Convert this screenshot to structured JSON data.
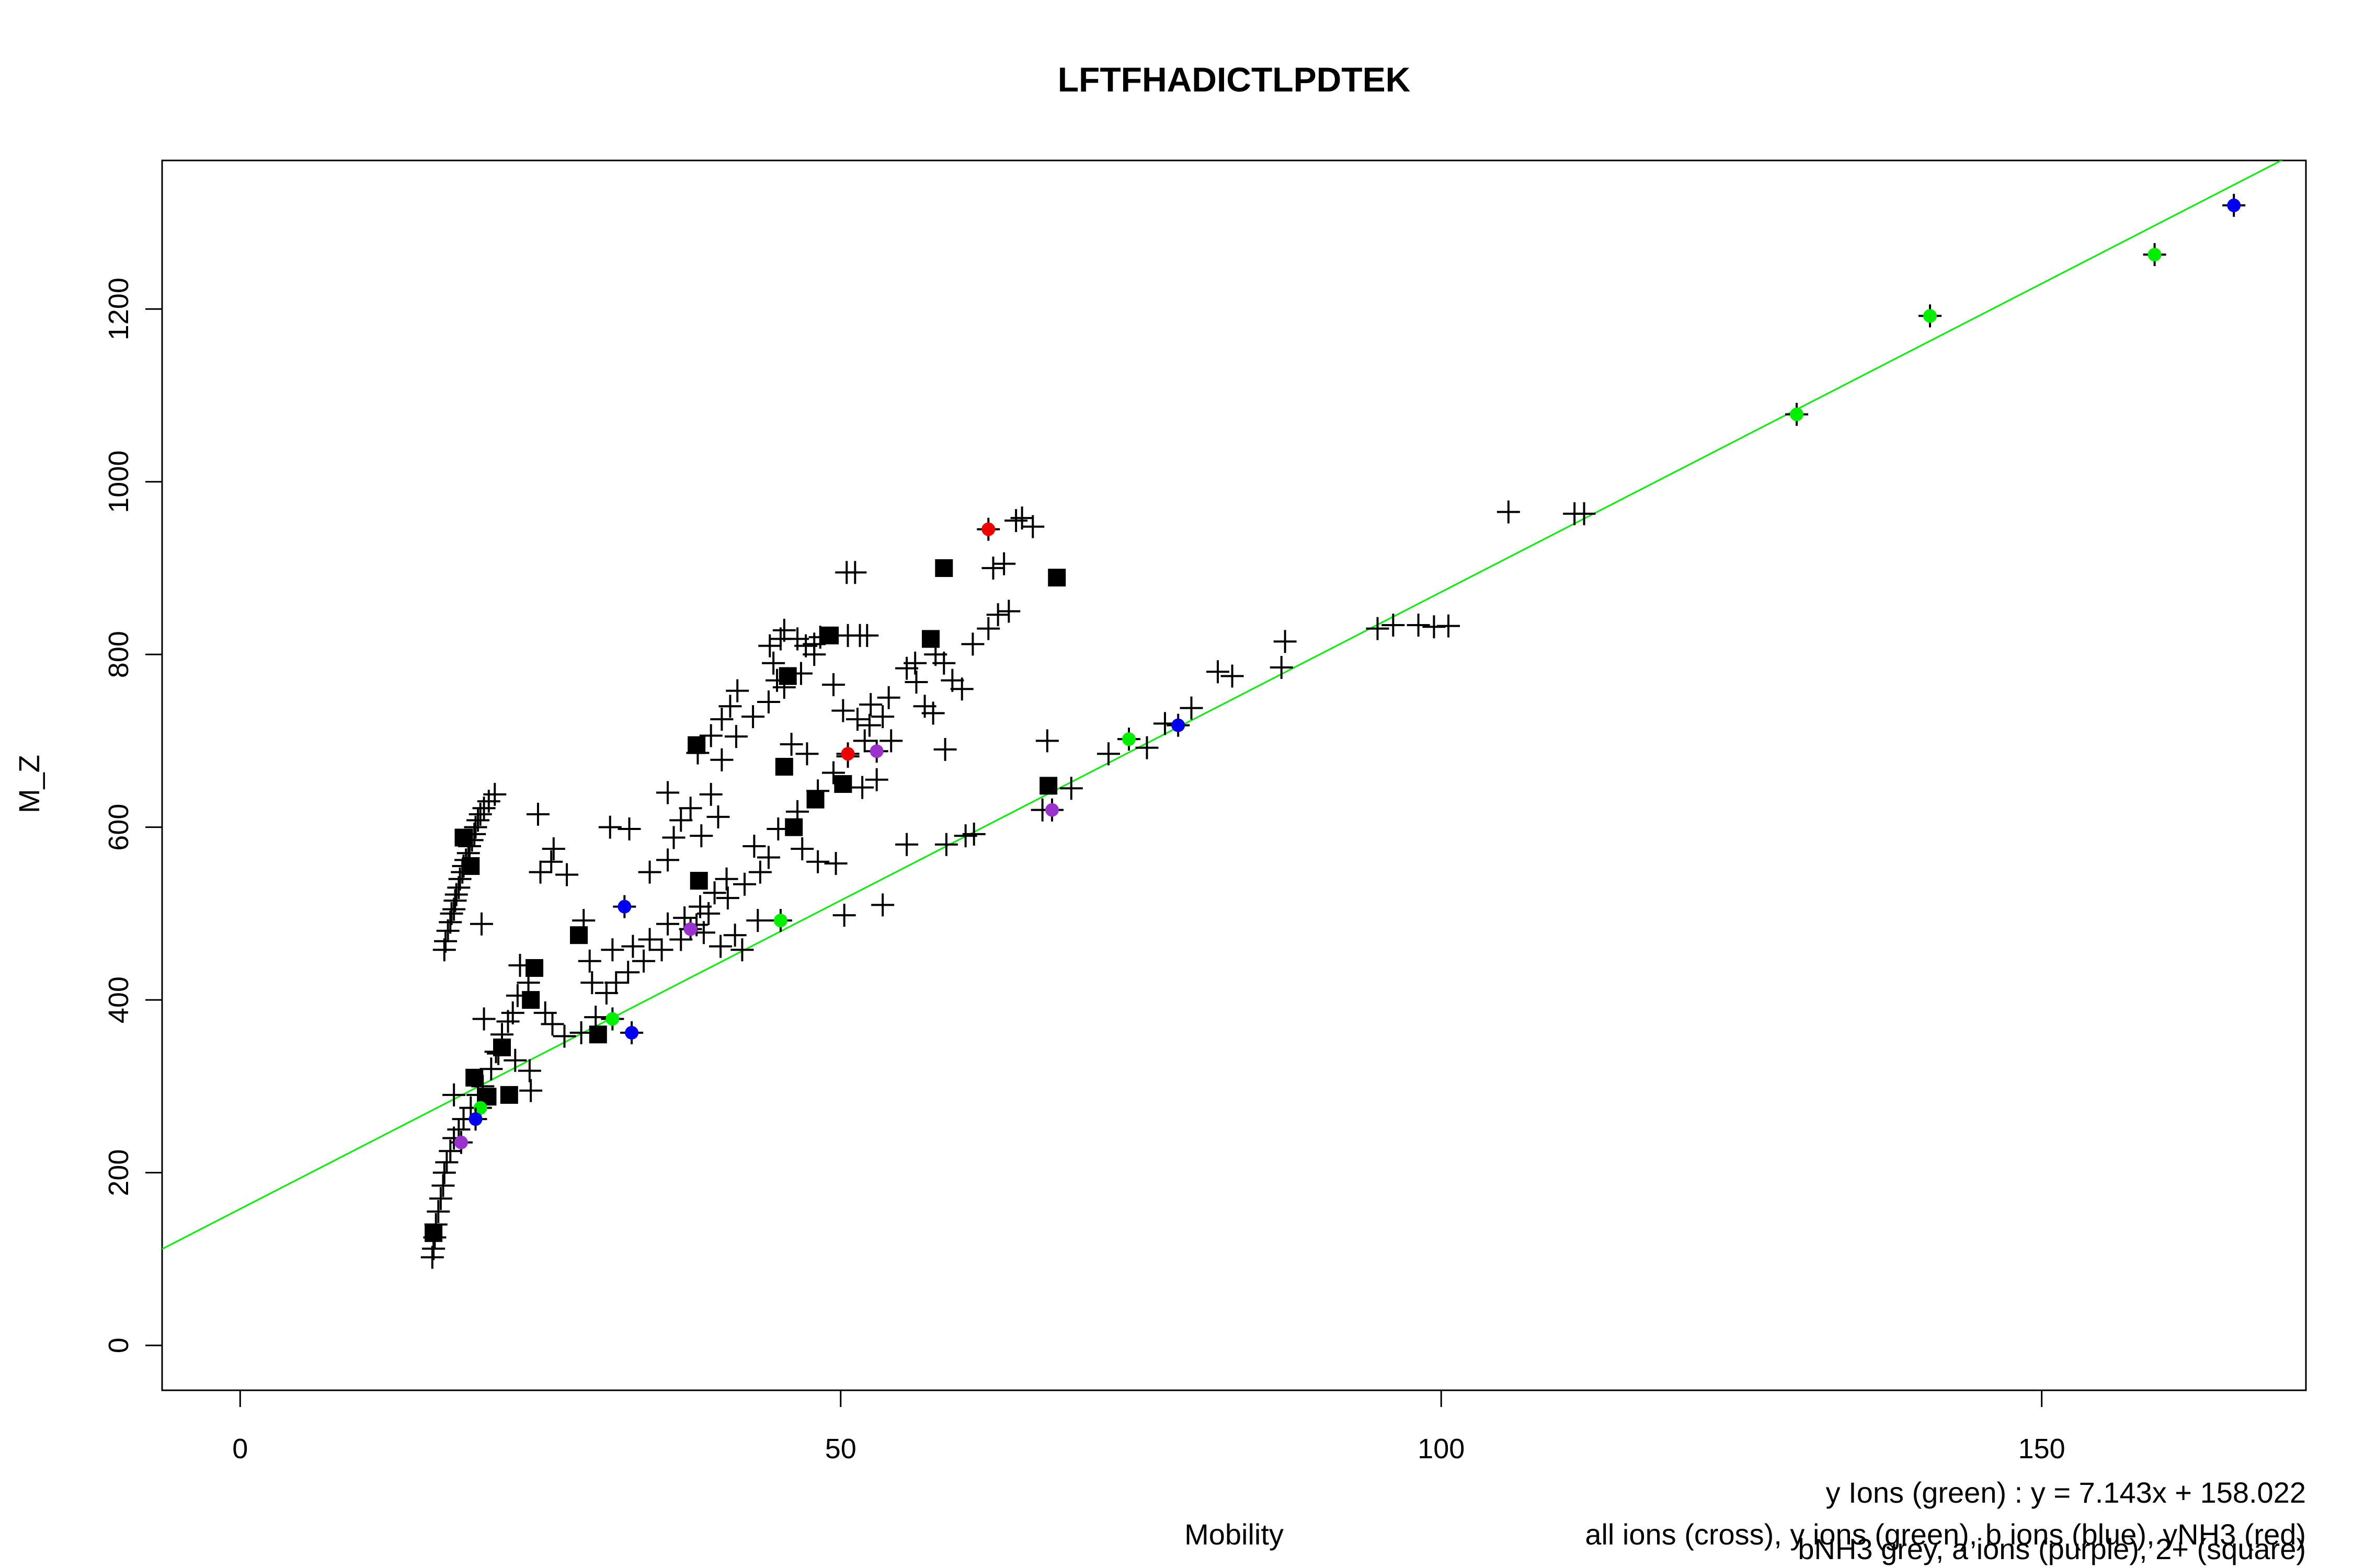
{
  "chart_data": {
    "type": "scatter",
    "title": "LFTFHADICTLPDTEK",
    "xlabel": "Mobility",
    "ylabel": "M_Z",
    "xlim": [
      -6.5,
      172
    ],
    "ylim": [
      -52,
      1372
    ],
    "x_ticks": [
      0,
      50,
      100,
      150
    ],
    "y_ticks": [
      0,
      200,
      400,
      600,
      800,
      1000,
      1200
    ],
    "grid": false,
    "legend": "bottom-right text notes",
    "notes": [
      "y Ions (green) : y = 7.143x + 158.022",
      "all ions (cross), y ions (green), b ions (blue), yNH3 (red)",
      "bNH3 grey, a ions (purple), 2+ (square)"
    ],
    "fit_line": {
      "slope": 7.143,
      "intercept": 158.022,
      "color": "#00ee00"
    },
    "colors": {
      "cross": "#000000",
      "square": "#000000",
      "y_ions": "#00ee00",
      "b_ions": "#0000ee",
      "yNH3": "#ee0000",
      "a_ions": "#9a32cd"
    },
    "series": [
      {
        "marker": "cross",
        "points": [
          [
            16.0,
            102
          ],
          [
            16.1,
            112
          ],
          [
            16.2,
            125
          ],
          [
            16.3,
            140
          ],
          [
            16.5,
            155
          ],
          [
            16.7,
            170
          ],
          [
            16.9,
            185
          ],
          [
            17.0,
            200
          ],
          [
            17.2,
            212
          ],
          [
            17.5,
            225
          ],
          [
            17.8,
            240
          ],
          [
            18.2,
            250
          ],
          [
            18.6,
            262
          ],
          [
            19.2,
            275
          ],
          [
            19.8,
            290
          ],
          [
            17.8,
            290
          ],
          [
            20.2,
            300
          ],
          [
            20.9,
            320
          ],
          [
            21.3,
            340
          ],
          [
            21.8,
            360
          ],
          [
            20.3,
            378
          ],
          [
            22.3,
            375
          ],
          [
            22.7,
            385
          ],
          [
            23.1,
            405
          ],
          [
            24.0,
            420
          ],
          [
            23.3,
            440
          ],
          [
            24.2,
            295
          ],
          [
            24.1,
            318
          ],
          [
            22.9,
            330
          ],
          [
            21.5,
            338
          ],
          [
            17.0,
            458
          ],
          [
            17.1,
            468
          ],
          [
            17.3,
            480
          ],
          [
            17.5,
            490
          ],
          [
            17.6,
            500
          ],
          [
            17.8,
            505
          ],
          [
            17.9,
            515
          ],
          [
            18.0,
            522
          ],
          [
            18.2,
            530
          ],
          [
            18.3,
            540
          ],
          [
            18.5,
            548
          ],
          [
            18.6,
            555
          ],
          [
            18.8,
            562
          ],
          [
            19.0,
            570
          ],
          [
            19.1,
            578
          ],
          [
            19.3,
            585
          ],
          [
            19.5,
            592
          ],
          [
            19.6,
            600
          ],
          [
            19.8,
            608
          ],
          [
            20.0,
            615
          ],
          [
            20.3,
            622
          ],
          [
            20.7,
            630
          ],
          [
            21.2,
            638
          ],
          [
            20.1,
            488
          ],
          [
            25.4,
            385
          ],
          [
            26.0,
            372
          ],
          [
            27.0,
            358
          ],
          [
            28.4,
            362
          ],
          [
            29.6,
            380
          ],
          [
            30.5,
            408
          ],
          [
            31.3,
            420
          ],
          [
            32.3,
            432
          ],
          [
            33.6,
            445
          ],
          [
            35.1,
            458
          ],
          [
            36.7,
            470
          ],
          [
            38.0,
            487
          ],
          [
            39.0,
            500
          ],
          [
            40.6,
            518
          ],
          [
            42.0,
            534
          ],
          [
            43.3,
            548
          ],
          [
            44.0,
            565
          ],
          [
            29.3,
            420
          ],
          [
            29.1,
            445
          ],
          [
            31.0,
            458
          ],
          [
            32.7,
            462
          ],
          [
            34.1,
            470
          ],
          [
            35.6,
            488
          ],
          [
            37.0,
            495
          ],
          [
            38.3,
            508
          ],
          [
            39.5,
            524
          ],
          [
            40.5,
            540
          ],
          [
            42.8,
            578
          ],
          [
            44.8,
            598
          ],
          [
            46.4,
            618
          ],
          [
            48.1,
            642
          ],
          [
            49.4,
            663
          ],
          [
            50.6,
            682
          ],
          [
            52.0,
            700
          ],
          [
            53.5,
            728
          ],
          [
            28.6,
            492
          ],
          [
            30.8,
            600
          ],
          [
            32.4,
            598
          ],
          [
            34.1,
            548
          ],
          [
            35.6,
            562
          ],
          [
            36.1,
            588
          ],
          [
            36.7,
            608
          ],
          [
            37.5,
            622
          ],
          [
            38.4,
            590
          ],
          [
            39.2,
            638
          ],
          [
            40.1,
            678
          ],
          [
            41.3,
            705
          ],
          [
            42.7,
            728
          ],
          [
            44.0,
            745
          ],
          [
            45.3,
            762
          ],
          [
            46.7,
            778
          ],
          [
            47.8,
            800
          ],
          [
            48.3,
            820
          ],
          [
            50.6,
            822
          ],
          [
            51.6,
            822
          ],
          [
            52.2,
            822
          ],
          [
            25.0,
            548
          ],
          [
            25.9,
            560
          ],
          [
            26.1,
            575
          ],
          [
            24.8,
            615
          ],
          [
            27.2,
            545
          ],
          [
            35.6,
            640
          ],
          [
            39.8,
            612
          ],
          [
            38.1,
            686
          ],
          [
            39.2,
            706
          ],
          [
            40.1,
            725
          ],
          [
            40.8,
            740
          ],
          [
            41.4,
            758
          ],
          [
            44.1,
            810
          ],
          [
            44.4,
            790
          ],
          [
            44.7,
            770
          ],
          [
            45.0,
            818
          ],
          [
            45.3,
            828
          ],
          [
            46.4,
            818
          ],
          [
            47.1,
            810
          ],
          [
            47.8,
            812
          ],
          [
            49.4,
            765
          ],
          [
            50.2,
            735
          ],
          [
            51.4,
            725
          ],
          [
            52.4,
            718
          ],
          [
            54.2,
            700
          ],
          [
            55.5,
            784
          ],
          [
            56.2,
            790
          ],
          [
            57.0,
            740
          ],
          [
            57.7,
            732
          ],
          [
            58.7,
            690
          ],
          [
            46.8,
            575
          ],
          [
            48.1,
            560
          ],
          [
            49.6,
            558
          ],
          [
            50.3,
            498
          ],
          [
            43.1,
            492
          ],
          [
            41.2,
            475
          ],
          [
            41.8,
            458
          ],
          [
            40.0,
            462
          ],
          [
            38.6,
            478
          ],
          [
            57.9,
            800
          ],
          [
            58.6,
            790
          ],
          [
            59.3,
            770
          ],
          [
            60.1,
            760
          ],
          [
            61.0,
            812
          ],
          [
            62.3,
            830
          ],
          [
            63.1,
            846
          ],
          [
            64.0,
            850
          ],
          [
            62.7,
            900
          ],
          [
            63.6,
            905
          ],
          [
            64.6,
            955
          ],
          [
            65.1,
            958
          ],
          [
            66.0,
            948
          ],
          [
            67.2,
            700
          ],
          [
            66.8,
            620
          ],
          [
            69.2,
            645
          ],
          [
            72.3,
            685
          ],
          [
            75.5,
            692
          ],
          [
            77.0,
            720
          ],
          [
            79.2,
            738
          ],
          [
            81.4,
            780
          ],
          [
            82.6,
            775
          ],
          [
            86.7,
            785
          ],
          [
            87.0,
            815
          ],
          [
            94.7,
            830
          ],
          [
            96.0,
            834
          ],
          [
            98.1,
            834
          ],
          [
            99.4,
            832
          ],
          [
            100.6,
            833
          ],
          [
            105.6,
            965
          ],
          [
            111.1,
            963
          ],
          [
            111.9,
            963
          ],
          [
            60.4,
            590
          ],
          [
            61.1,
            592
          ],
          [
            53.5,
            510
          ],
          [
            55.5,
            580
          ],
          [
            58.8,
            580
          ],
          [
            56.3,
            768
          ],
          [
            54.0,
            750
          ],
          [
            51.2,
            895
          ],
          [
            50.5,
            895
          ],
          [
            52.5,
            742
          ],
          [
            53.0,
            655
          ],
          [
            51.8,
            646
          ],
          [
            47.2,
            685
          ],
          [
            45.9,
            696
          ]
        ]
      },
      {
        "marker": "square",
        "points": [
          [
            16.1,
            130
          ],
          [
            19.5,
            310
          ],
          [
            21.8,
            345
          ],
          [
            20.6,
            288
          ],
          [
            24.2,
            400
          ],
          [
            24.5,
            437
          ],
          [
            22.4,
            290
          ],
          [
            28.2,
            475
          ],
          [
            29.8,
            360
          ],
          [
            38.0,
            695
          ],
          [
            38.2,
            538
          ],
          [
            45.3,
            670
          ],
          [
            46.1,
            600
          ],
          [
            47.9,
            632
          ],
          [
            50.2,
            650
          ],
          [
            49.1,
            822
          ],
          [
            45.6,
            775
          ],
          [
            57.5,
            818
          ],
          [
            58.6,
            900
          ],
          [
            67.3,
            648
          ],
          [
            68.0,
            889
          ],
          [
            18.6,
            588
          ],
          [
            19.2,
            555
          ]
        ]
      },
      {
        "name": "y ions (green)",
        "marker": "dot",
        "color": "#00ee00",
        "points": [
          [
            20.0,
            275
          ],
          [
            31.0,
            378
          ],
          [
            45.0,
            492
          ],
          [
            74.0,
            702
          ],
          [
            129.6,
            1078
          ],
          [
            140.7,
            1192
          ],
          [
            159.4,
            1263
          ]
        ]
      },
      {
        "name": "b ions (blue)",
        "marker": "dot",
        "color": "#0000ee",
        "points": [
          [
            19.6,
            262
          ],
          [
            32.0,
            508
          ],
          [
            32.6,
            362
          ],
          [
            78.1,
            718
          ],
          [
            166.0,
            1320
          ]
        ]
      },
      {
        "name": "yNH3 (red)",
        "marker": "dot",
        "color": "#ee0000",
        "points": [
          [
            50.6,
            685
          ],
          [
            62.3,
            945
          ]
        ]
      },
      {
        "name": "a ions (purple)",
        "marker": "dot",
        "color": "#9a32cd",
        "points": [
          [
            18.4,
            235
          ],
          [
            37.5,
            482
          ],
          [
            53.0,
            688
          ],
          [
            67.6,
            620
          ]
        ]
      }
    ]
  }
}
